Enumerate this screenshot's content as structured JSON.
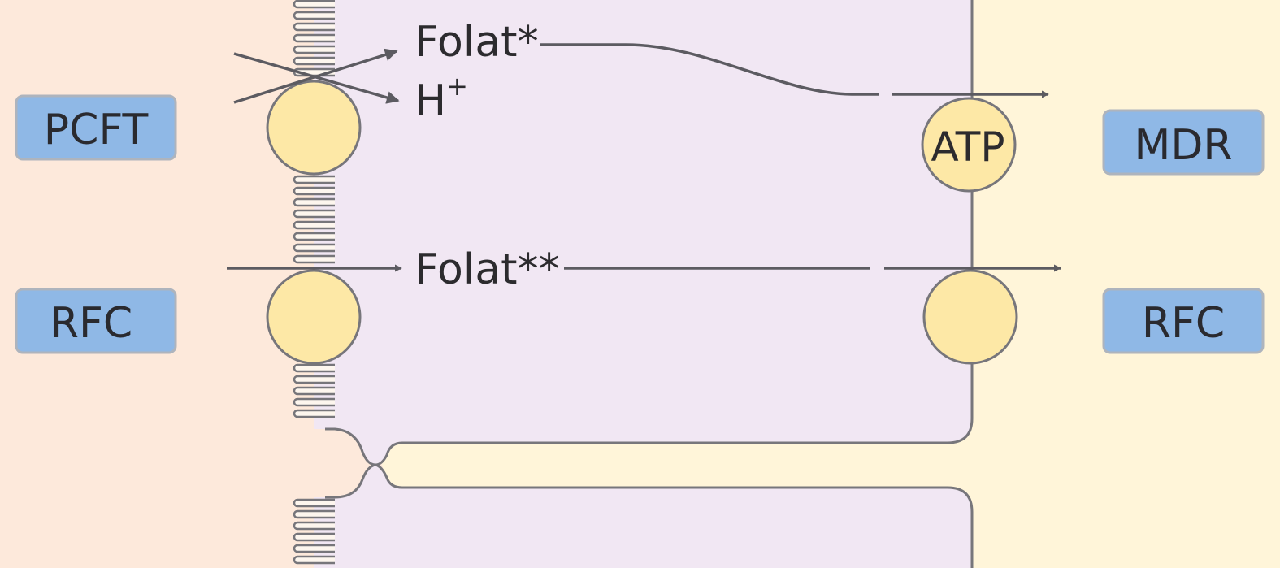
{
  "colors": {
    "left_bg": "#fde9db",
    "cell": "#f1e7f3",
    "right_bg": "#fff5d9",
    "junction": "#fdf6d8",
    "membrane": "#77767b",
    "transporter_fill": "#fde8a6",
    "box_fill": "#8fb8e6",
    "box_stroke": "#aeb4bd",
    "arrow": "#5c5b61"
  },
  "labels": {
    "pcft": "PCFT",
    "rfc_left": "RFC",
    "mdr": "MDR",
    "rfc_right": "RFC",
    "folat_star": "Folat*",
    "h_plus_base": "H",
    "h_plus_sup": "+",
    "folat_double_star": "Folat**",
    "atp": "ATP"
  },
  "icons": {
    "blocked_arrows": "x-cross-arrows-icon",
    "arrow": "arrow-right-icon"
  }
}
